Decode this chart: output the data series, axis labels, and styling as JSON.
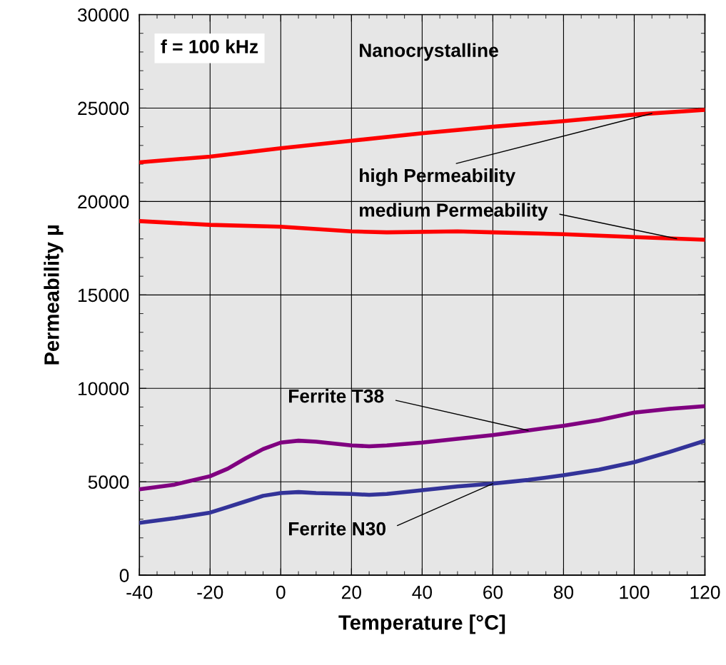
{
  "chart_data": {
    "type": "line",
    "xlabel": "Temperature [°C]",
    "ylabel": "Permeability µ",
    "xlim": [
      -40,
      120
    ],
    "xticks": [
      -40,
      -20,
      0,
      20,
      40,
      60,
      80,
      100,
      120
    ],
    "ylim": [
      0,
      30000
    ],
    "yticks": [
      0,
      5000,
      10000,
      15000,
      20000,
      25000,
      30000
    ],
    "grid": true,
    "legend": false,
    "marker": "none",
    "line_style": "solid",
    "annotations": [
      "f = 100 kHz",
      "Nanocrystalline"
    ],
    "series": [
      {
        "name": "high Permeability",
        "color": "#ff0000",
        "x": [
          -40,
          -20,
          0,
          20,
          40,
          60,
          80,
          100,
          120
        ],
        "values": [
          22100,
          22400,
          22850,
          23250,
          23650,
          24000,
          24300,
          24650,
          24900
        ]
      },
      {
        "name": "medium Permeability",
        "color": "#ff0000",
        "x": [
          -40,
          -20,
          0,
          20,
          30,
          50,
          60,
          80,
          100,
          120
        ],
        "values": [
          18950,
          18750,
          18650,
          18400,
          18350,
          18400,
          18350,
          18250,
          18100,
          17950
        ]
      },
      {
        "name": "Ferrite T38",
        "color": "#800080",
        "x": [
          -40,
          -30,
          -20,
          -15,
          -10,
          -5,
          0,
          5,
          10,
          20,
          25,
          30,
          40,
          50,
          60,
          70,
          80,
          90,
          100,
          110,
          120
        ],
        "values": [
          4600,
          4850,
          5300,
          5700,
          6250,
          6750,
          7100,
          7200,
          7150,
          6950,
          6900,
          6950,
          7100,
          7300,
          7500,
          7750,
          8000,
          8300,
          8700,
          8900,
          9050
        ]
      },
      {
        "name": "Ferrite N30",
        "color": "#333399",
        "x": [
          -40,
          -30,
          -20,
          -15,
          -10,
          -5,
          0,
          5,
          10,
          20,
          25,
          30,
          40,
          50,
          60,
          70,
          80,
          90,
          100,
          110,
          120
        ],
        "values": [
          2800,
          3050,
          3350,
          3650,
          3950,
          4250,
          4400,
          4450,
          4400,
          4350,
          4300,
          4350,
          4550,
          4750,
          4900,
          5100,
          5350,
          5650,
          6050,
          6600,
          7200
        ]
      }
    ]
  }
}
